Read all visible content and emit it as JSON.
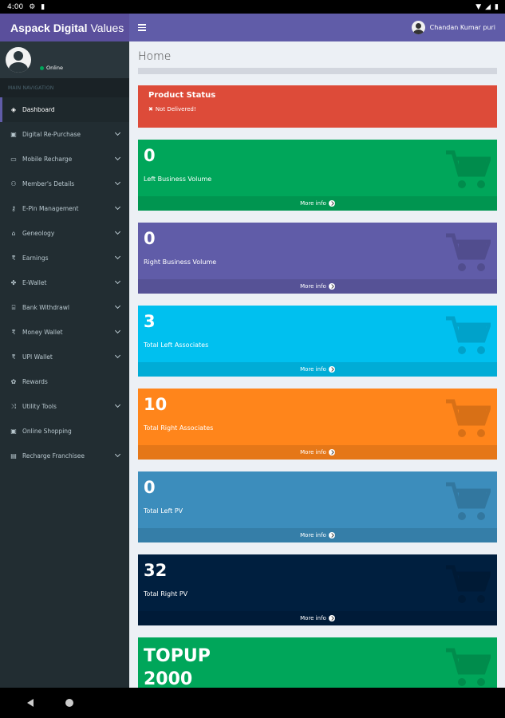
{
  "status_bar": {
    "time": "4:00"
  },
  "header": {
    "logo_bold": "Aspack Digital",
    "logo_light": "Values",
    "user_name": "Chandan Kumar puri"
  },
  "sidebar": {
    "status": "Online",
    "nav_header": "MAIN NAVIGATION",
    "items": [
      {
        "label": "Dashboard",
        "icon": "dashboard-icon",
        "glyph": "◈",
        "active": true,
        "chevron": false
      },
      {
        "label": "Digital Re-Purchase",
        "icon": "cart-icon",
        "glyph": "▣",
        "chevron": true
      },
      {
        "label": "Mobile Recharge",
        "icon": "battery-icon",
        "glyph": "▭",
        "chevron": true
      },
      {
        "label": "Member's Details",
        "icon": "users-icon",
        "glyph": "⚇",
        "chevron": true
      },
      {
        "label": "E-Pin Management",
        "icon": "key-icon",
        "glyph": "⚷",
        "chevron": true
      },
      {
        "label": "Geneology",
        "icon": "sitemap-icon",
        "glyph": "⌂",
        "chevron": true
      },
      {
        "label": "Earnings",
        "icon": "rupee-icon",
        "glyph": "₹",
        "chevron": true
      },
      {
        "label": "E-Wallet",
        "icon": "handshake-icon",
        "glyph": "✤",
        "chevron": true
      },
      {
        "label": "Bank Withdrawl",
        "icon": "bank-icon",
        "glyph": "⌸",
        "chevron": true
      },
      {
        "label": "Money Wallet",
        "icon": "rupee-icon",
        "glyph": "₹",
        "chevron": true
      },
      {
        "label": "UPI Wallet",
        "icon": "rupee-icon",
        "glyph": "₹",
        "chevron": true
      },
      {
        "label": "Rewards",
        "icon": "gift-icon",
        "glyph": "✿",
        "chevron": false
      },
      {
        "label": "Utility Tools",
        "icon": "random-icon",
        "glyph": "⤨",
        "chevron": true
      },
      {
        "label": "Online Shopping",
        "icon": "cart-icon",
        "glyph": "▣",
        "chevron": false
      },
      {
        "label": "Recharge Franchisee",
        "icon": "briefcase-icon",
        "glyph": "▤",
        "chevron": true
      }
    ]
  },
  "main": {
    "page_title": "Home",
    "product_status": {
      "title": "Product Status",
      "value": "Not Delivered!"
    },
    "more_info": "More info",
    "boxes": [
      {
        "value": "0",
        "label": "Left Business Volume",
        "color": "#00a65a"
      },
      {
        "value": "0",
        "label": "Right Business Volume",
        "color": "#605ca8"
      },
      {
        "value": "3",
        "label": "Total Left Associates",
        "color": "#00c0ef"
      },
      {
        "value": "10",
        "label": "Total Right Associates",
        "color": "#ff851b"
      },
      {
        "value": "0",
        "label": "Total Left PV",
        "color": "#3c8dbc"
      },
      {
        "value": "32",
        "label": "Total Right PV",
        "color": "#001f3f"
      },
      {
        "value": "TOPUP\n2000",
        "label": "",
        "color": "#00a65a"
      }
    ]
  }
}
